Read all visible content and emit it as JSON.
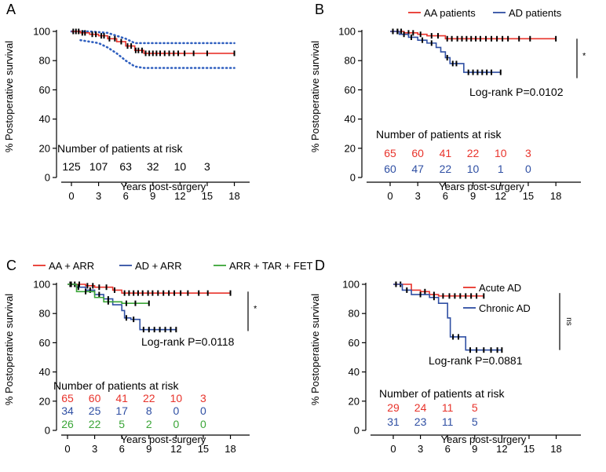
{
  "colors": {
    "red": "#e8332b",
    "blue": "#2f4fa3",
    "green": "#3aa537",
    "ci": "#2f5fbf",
    "black": "#000000"
  },
  "chart_data": [
    {
      "id": "A",
      "type": "line",
      "panel_label": "A",
      "ylabel": "% Postoperative survival",
      "xlabel": "Years post-surgery",
      "xlim": [
        -1,
        18.5
      ],
      "ylim": [
        0,
        100
      ],
      "xticks": [
        0,
        3,
        6,
        9,
        12,
        15,
        18
      ],
      "yticks": [
        0,
        20,
        40,
        60,
        80,
        100
      ],
      "legend": [],
      "series": [
        {
          "name": "All patients",
          "color": "#e8332b",
          "steps": [
            [
              0,
              100
            ],
            [
              1,
              99
            ],
            [
              2,
              98
            ],
            [
              3,
              97
            ],
            [
              4,
              95
            ],
            [
              5,
              93
            ],
            [
              6,
              90
            ],
            [
              7,
              87
            ],
            [
              8,
              85
            ],
            [
              18,
              85
            ]
          ],
          "censors": [
            0.2,
            0.5,
            0.8,
            1.2,
            1.5,
            2.3,
            2.7,
            3.3,
            3.6,
            4.2,
            4.8,
            5.5,
            6.2,
            6.6,
            7.1,
            7.4,
            7.8,
            8.2,
            8.6,
            9.0,
            9.4,
            9.8,
            10.3,
            10.8,
            11.3,
            11.8,
            12.5,
            13.5,
            15.0,
            18.0
          ]
        }
      ],
      "ci_bands": [
        {
          "name": "95% CI upper",
          "color": "#2f5fbf",
          "points": [
            [
              0,
              100
            ],
            [
              2,
              100
            ],
            [
              4,
              99
            ],
            [
              5,
              97
            ],
            [
              6,
              95
            ],
            [
              7,
              92
            ],
            [
              18,
              92
            ]
          ]
        },
        {
          "name": "95% CI lower",
          "color": "#2f5fbf",
          "points": [
            [
              1,
              94
            ],
            [
              3,
              92
            ],
            [
              4,
              89
            ],
            [
              5,
              85
            ],
            [
              6,
              80
            ],
            [
              7,
              76
            ],
            [
              8,
              75
            ],
            [
              18,
              75
            ]
          ]
        }
      ],
      "risk_table": {
        "title": "Number of patients at risk",
        "times": [
          0,
          3,
          6,
          9,
          12,
          15
        ],
        "rows": [
          {
            "color": "#000000",
            "values": [
              "125",
              "107",
              "63",
              "32",
              "10",
              "3"
            ]
          }
        ]
      },
      "logrank": null,
      "sig": null
    },
    {
      "id": "B",
      "type": "line",
      "panel_label": "B",
      "ylabel": "% Postoperative survival",
      "xlabel": "Years post-surgery",
      "xlim": [
        -1,
        18.5
      ],
      "ylim": [
        0,
        100
      ],
      "xticks": [
        0,
        3,
        6,
        9,
        12,
        15,
        18
      ],
      "yticks": [
        0,
        20,
        40,
        60,
        80,
        100
      ],
      "legend": [
        {
          "label": "AA patients",
          "color": "#e8332b"
        },
        {
          "label": "AD patients",
          "color": "#2f4fa3"
        }
      ],
      "series": [
        {
          "name": "AA patients",
          "color": "#e8332b",
          "steps": [
            [
              0,
              100
            ],
            [
              1.5,
              99
            ],
            [
              3,
              98
            ],
            [
              4,
              97
            ],
            [
              6,
              95
            ],
            [
              18,
              95
            ]
          ],
          "censors": [
            0.3,
            0.8,
            1.2,
            2.0,
            2.5,
            3.3,
            4.5,
            5.2,
            6.2,
            6.7,
            7.3,
            7.8,
            8.3,
            8.8,
            9.3,
            9.8,
            10.4,
            11.0,
            11.6,
            12.2,
            12.8,
            14.0,
            15.2,
            18.0
          ]
        },
        {
          "name": "AD patients",
          "color": "#2f4fa3",
          "steps": [
            [
              0,
              100
            ],
            [
              1,
              98
            ],
            [
              2,
              96
            ],
            [
              3,
              94
            ],
            [
              4,
              92
            ],
            [
              5,
              89
            ],
            [
              5.5,
              86
            ],
            [
              6,
              82
            ],
            [
              6.5,
              78
            ],
            [
              8,
              72
            ],
            [
              12,
              72
            ]
          ],
          "censors": [
            0.3,
            0.8,
            1.5,
            2.3,
            3.5,
            4.5,
            6.2,
            6.8,
            7.2,
            8.5,
            9.0,
            9.5,
            10.0,
            10.5,
            11.0,
            12.0
          ]
        }
      ],
      "ci_bands": [],
      "risk_table": {
        "title": "Number of patients at risk",
        "times": [
          0,
          3,
          6,
          9,
          12,
          15
        ],
        "rows": [
          {
            "color": "#e8332b",
            "values": [
              "65",
              "60",
              "41",
              "22",
              "10",
              "3"
            ]
          },
          {
            "color": "#2f4fa3",
            "values": [
              "60",
              "47",
              "22",
              "10",
              "1",
              "0"
            ]
          }
        ]
      },
      "logrank": "Log-rank P=0.0102",
      "sig": {
        "label": "*",
        "y_top": 95,
        "y_bottom": 68,
        "rotated": false
      }
    },
    {
      "id": "C",
      "type": "line",
      "panel_label": "C",
      "ylabel": "% Postoperative survival",
      "xlabel": "Years post-surgery",
      "xlim": [
        -1,
        18.5
      ],
      "ylim": [
        0,
        100
      ],
      "xticks": [
        0,
        3,
        6,
        9,
        12,
        15,
        18
      ],
      "yticks": [
        0,
        20,
        40,
        60,
        80,
        100
      ],
      "legend": [
        {
          "label": "AA + ARR",
          "color": "#e8332b"
        },
        {
          "label": "AD + ARR",
          "color": "#2f4fa3"
        },
        {
          "label": "ARR + TAR + FET",
          "color": "#3aa537"
        }
      ],
      "series": [
        {
          "name": "AA + ARR",
          "color": "#e8332b",
          "steps": [
            [
              0,
              100
            ],
            [
              2,
              99
            ],
            [
              3,
              98
            ],
            [
              5,
              96
            ],
            [
              6,
              94
            ],
            [
              18,
              94
            ]
          ],
          "censors": [
            0.3,
            0.8,
            1.3,
            2.2,
            2.8,
            3.5,
            4.3,
            5.2,
            6.3,
            6.8,
            7.3,
            7.8,
            8.3,
            8.9,
            9.4,
            10.0,
            10.6,
            11.2,
            11.8,
            12.5,
            13.3,
            14.5,
            15.5,
            18.0
          ]
        },
        {
          "name": "AD + ARR",
          "color": "#2f4fa3",
          "steps": [
            [
              0,
              100
            ],
            [
              1,
              98
            ],
            [
              2,
              96
            ],
            [
              3,
              93
            ],
            [
              4,
              90
            ],
            [
              5,
              86
            ],
            [
              6,
              82
            ],
            [
              6.3,
              77
            ],
            [
              7,
              76
            ],
            [
              8,
              69
            ],
            [
              12,
              69
            ]
          ],
          "censors": [
            0.3,
            1.2,
            2.5,
            3.5,
            4.5,
            6.5,
            7.3,
            8.4,
            9.0,
            9.6,
            10.2,
            10.8,
            11.4,
            12.0
          ]
        },
        {
          "name": "ARR + TAR + FET",
          "color": "#3aa537",
          "steps": [
            [
              0,
              100
            ],
            [
              1,
              95
            ],
            [
              3,
              91
            ],
            [
              4,
              88
            ],
            [
              6,
              87
            ],
            [
              9,
              87
            ]
          ],
          "censors": [
            0.4,
            2.0,
            4.5,
            6.5,
            7.5,
            9.0
          ]
        }
      ],
      "ci_bands": [],
      "risk_table": {
        "title": "Number of patients at risk",
        "times": [
          0,
          3,
          6,
          9,
          12,
          15
        ],
        "rows": [
          {
            "color": "#e8332b",
            "values": [
              "65",
              "60",
              "41",
              "22",
              "10",
              "3"
            ]
          },
          {
            "color": "#2f4fa3",
            "values": [
              "34",
              "25",
              "17",
              "8",
              "0",
              "0"
            ]
          },
          {
            "color": "#3aa537",
            "values": [
              "26",
              "22",
              "5",
              "2",
              "0",
              "0"
            ]
          }
        ]
      },
      "logrank": "Log-rank P=0.0118",
      "sig": {
        "label": "*",
        "y_top": 95,
        "y_bottom": 68,
        "rotated": false
      }
    },
    {
      "id": "D",
      "type": "line",
      "panel_label": "D",
      "ylabel": "% Postoperative survival",
      "xlabel": "Years post-surgery",
      "xlim": [
        -1,
        18.5
      ],
      "ylim": [
        0,
        100
      ],
      "xticks": [
        0,
        3,
        6,
        9,
        12,
        15,
        18
      ],
      "yticks": [
        0,
        20,
        40,
        60,
        80,
        100
      ],
      "legend": [
        {
          "label": "Acute AD",
          "color": "#e8332b"
        },
        {
          "label": "Chronic AD",
          "color": "#2f4fa3"
        }
      ],
      "series": [
        {
          "name": "Acute AD",
          "color": "#e8332b",
          "steps": [
            [
              0,
              100
            ],
            [
              2,
              96
            ],
            [
              3,
              95
            ],
            [
              4,
              93
            ],
            [
              5,
              92
            ],
            [
              10,
              92
            ]
          ],
          "censors": [
            0.3,
            0.8,
            3.5,
            4.5,
            5.5,
            6.2,
            6.8,
            7.4,
            8.0,
            8.6,
            9.2,
            10.0
          ]
        },
        {
          "name": "Chronic AD",
          "color": "#2f4fa3",
          "steps": [
            [
              0,
              100
            ],
            [
              1,
              96
            ],
            [
              2,
              93
            ],
            [
              4,
              91
            ],
            [
              5,
              87
            ],
            [
              6,
              77
            ],
            [
              6.3,
              64
            ],
            [
              8,
              55
            ],
            [
              12,
              55
            ]
          ],
          "censors": [
            0.3,
            1.5,
            3.0,
            4.5,
            6.6,
            7.2,
            8.5,
            9.2,
            10.0,
            10.8,
            11.5,
            12.0
          ]
        }
      ],
      "ci_bands": [],
      "risk_table": {
        "title": "Number of patients at risk",
        "times": [
          0,
          3,
          6,
          9
        ],
        "rows": [
          {
            "color": "#e8332b",
            "values": [
              "29",
              "24",
              "11",
              "5"
            ]
          },
          {
            "color": "#2f4fa3",
            "values": [
              "31",
              "23",
              "11",
              "5"
            ]
          }
        ]
      },
      "logrank": "Log-rank P=0.0881",
      "sig": {
        "label": "ns",
        "y_top": 94,
        "y_bottom": 55,
        "rotated": true
      }
    }
  ]
}
